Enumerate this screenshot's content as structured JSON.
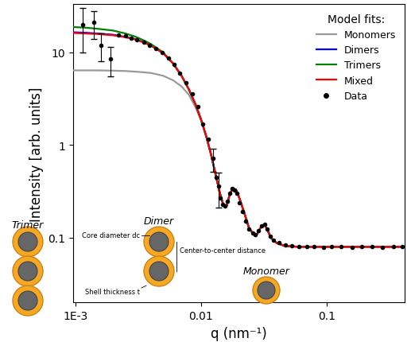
{
  "chart_data": {
    "type": "line",
    "xlabel": "q (nm⁻¹)",
    "ylabel": "Intensity [arb. units]",
    "log": true,
    "xlim": [
      0.00096,
      0.42
    ],
    "xticks": [
      {
        "value": 0.001,
        "label": "1E-3"
      },
      0.01,
      0.1
    ],
    "ylim": [
      0.02,
      33
    ],
    "yticks": [
      0.1,
      1,
      10
    ],
    "legend": "upper right",
    "legend_title": "Model fits:",
    "x": [
      0.00095,
      0.0012,
      0.0015,
      0.002,
      0.0025,
      0.003,
      0.0035,
      0.004,
      0.005,
      0.006,
      0.007,
      0.008,
      0.009,
      0.01,
      0.011,
      0.012,
      0.013,
      0.014,
      0.015,
      0.016,
      0.017,
      0.018,
      0.019,
      0.02,
      0.022,
      0.024,
      0.026,
      0.028,
      0.03,
      0.032,
      0.034,
      0.036,
      0.04,
      0.045,
      0.05,
      0.06,
      0.08,
      0.1,
      0.2,
      0.45
    ],
    "series": [
      {
        "name": "Monomers",
        "color": "#9a9a9a",
        "type": "line",
        "values": [
          6.4,
          6.4,
          6.4,
          6.35,
          6.3,
          6.2,
          6.1,
          6.0,
          5.6,
          5.0,
          4.3,
          3.5,
          2.6,
          1.85,
          1.25,
          0.8,
          0.5,
          0.32,
          0.23,
          0.22,
          0.3,
          0.34,
          0.33,
          0.28,
          0.19,
          0.13,
          0.11,
          0.11,
          0.13,
          0.14,
          0.12,
          0.1,
          0.088,
          0.083,
          0.081,
          0.08,
          0.08,
          0.08,
          0.08,
          0.08
        ]
      },
      {
        "name": "Dimers",
        "color": "#0000ff",
        "type": "line",
        "values": [
          16.5,
          16.3,
          16.0,
          15.5,
          14.7,
          13.9,
          12.9,
          11.9,
          9.8,
          7.6,
          5.6,
          4.0,
          2.8,
          1.9,
          1.25,
          0.8,
          0.5,
          0.32,
          0.23,
          0.22,
          0.3,
          0.34,
          0.33,
          0.28,
          0.19,
          0.13,
          0.11,
          0.11,
          0.13,
          0.14,
          0.12,
          0.1,
          0.088,
          0.083,
          0.081,
          0.08,
          0.08,
          0.08,
          0.08,
          0.08
        ]
      },
      {
        "name": "Trimers",
        "color": "#008000",
        "type": "line",
        "values": [
          18.8,
          18.5,
          18.0,
          17.2,
          16.0,
          14.8,
          13.5,
          12.3,
          10.0,
          7.6,
          5.6,
          4.0,
          2.8,
          1.9,
          1.25,
          0.8,
          0.5,
          0.32,
          0.23,
          0.22,
          0.3,
          0.34,
          0.33,
          0.28,
          0.19,
          0.13,
          0.11,
          0.11,
          0.13,
          0.14,
          0.12,
          0.1,
          0.088,
          0.083,
          0.081,
          0.08,
          0.08,
          0.08,
          0.08,
          0.08
        ]
      },
      {
        "name": "Mixed",
        "color": "#ff0000",
        "type": "line",
        "values": [
          16.2,
          16.0,
          15.8,
          15.3,
          14.6,
          13.8,
          12.8,
          11.8,
          9.8,
          7.6,
          5.6,
          4.0,
          2.8,
          1.9,
          1.25,
          0.8,
          0.5,
          0.32,
          0.23,
          0.22,
          0.3,
          0.34,
          0.33,
          0.28,
          0.19,
          0.13,
          0.11,
          0.11,
          0.13,
          0.14,
          0.12,
          0.1,
          0.088,
          0.083,
          0.081,
          0.08,
          0.08,
          0.08,
          0.08,
          0.08
        ]
      },
      {
        "name": "Data",
        "color": "#000000",
        "type": "scatter",
        "marker": "o",
        "x": [
          0.00115,
          0.0014,
          0.0016,
          0.0019,
          0.0022,
          0.0025,
          0.0028,
          0.0031,
          0.0035,
          0.0039,
          0.0044,
          0.0049,
          0.0055,
          0.0061,
          0.0068,
          0.0076,
          0.0085,
          0.0094,
          0.0104,
          0.0114,
          0.0124,
          0.0133,
          0.0138,
          0.0143,
          0.0148,
          0.0155,
          0.0162,
          0.0169,
          0.0176,
          0.0184,
          0.0193,
          0.0203,
          0.0215,
          0.0228,
          0.0242,
          0.0257,
          0.0272,
          0.0288,
          0.0304,
          0.032,
          0.0338,
          0.0358,
          0.038,
          0.042,
          0.047,
          0.053,
          0.06,
          0.07,
          0.08,
          0.095,
          0.11,
          0.13,
          0.16,
          0.19,
          0.23,
          0.28,
          0.34,
          0.4
        ],
        "values": [
          20,
          21,
          12,
          8.5,
          15.5,
          15.0,
          14.2,
          13.6,
          12.9,
          12.0,
          11.0,
          9.9,
          8.7,
          7.4,
          6.0,
          4.7,
          3.6,
          2.6,
          1.7,
          1.15,
          0.72,
          0.45,
          0.36,
          0.27,
          0.23,
          0.22,
          0.25,
          0.3,
          0.34,
          0.33,
          0.3,
          0.24,
          0.19,
          0.15,
          0.125,
          0.112,
          0.108,
          0.12,
          0.135,
          0.14,
          0.125,
          0.105,
          0.095,
          0.088,
          0.084,
          0.082,
          0.081,
          0.08,
          0.081,
          0.079,
          0.08,
          0.08,
          0.079,
          0.08,
          0.081,
          0.079,
          0.08,
          0.08
        ],
        "errors": [
          10,
          7,
          4,
          3,
          null,
          null,
          null,
          null,
          null,
          null,
          null,
          null,
          null,
          null,
          null,
          null,
          null,
          null,
          null,
          null,
          0.2,
          null,
          0.15,
          null,
          null,
          null,
          null,
          null,
          null,
          null,
          null,
          null,
          null,
          null,
          null,
          null,
          null,
          null,
          null,
          null,
          null,
          null,
          null,
          null,
          null,
          null,
          null,
          null,
          null,
          null,
          null,
          null,
          null,
          null,
          null,
          null,
          null,
          null
        ]
      }
    ],
    "schematic": {
      "trimer": "Trimer",
      "dimer": "Dimer",
      "monomer": "Monomer",
      "core": "Core diameter dc",
      "distance": "Center-to-center distance",
      "shell": "Shell thickness t"
    }
  }
}
